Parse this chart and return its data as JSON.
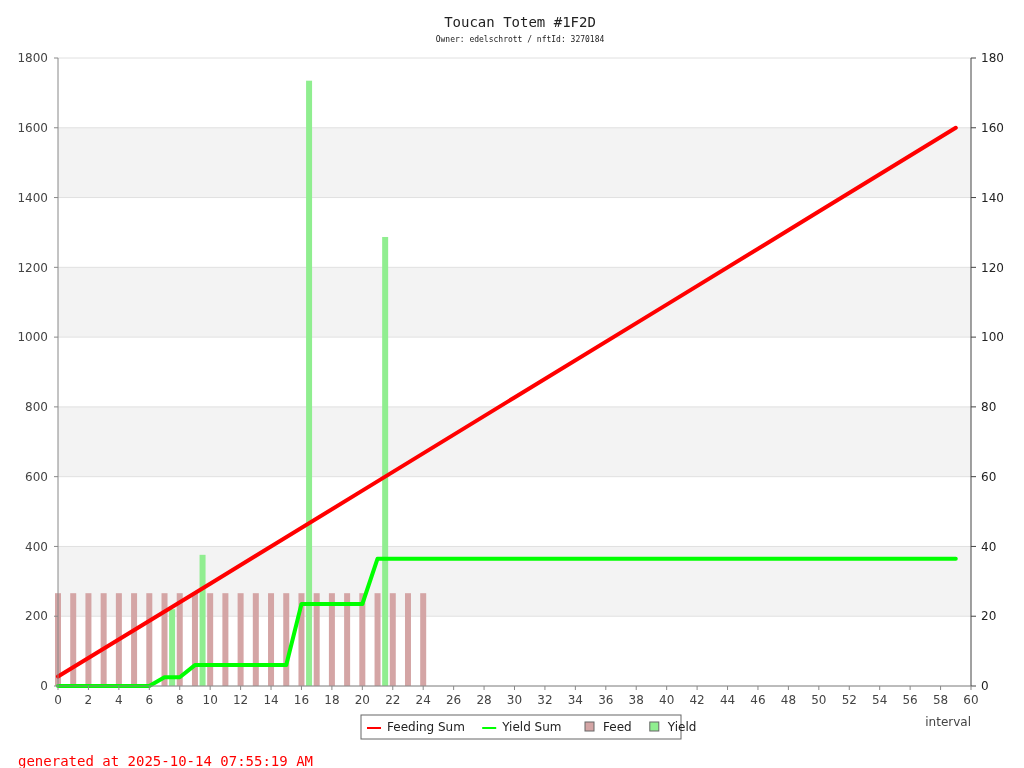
{
  "chart_data": {
    "type": "line",
    "title": "Toucan Totem #1F2D",
    "subtitle": "Owner: edelschrott / nftId: 3270184",
    "xlabel": "interval",
    "annotations": [
      "generated at 2025-10-14 07:55:19 AM"
    ],
    "xlim": [
      0,
      60
    ],
    "xticks": [
      0,
      2,
      4,
      6,
      8,
      10,
      12,
      14,
      16,
      18,
      20,
      22,
      24,
      26,
      28,
      30,
      32,
      34,
      36,
      38,
      40,
      42,
      44,
      46,
      48,
      50,
      52,
      54,
      56,
      58,
      60
    ],
    "ylim": [
      0,
      1800
    ],
    "yticks": [
      0,
      200,
      400,
      600,
      800,
      1000,
      1200,
      1400,
      1600,
      1800
    ],
    "y2lim": [
      0,
      180
    ],
    "y2ticks": [
      0,
      20,
      40,
      60,
      80,
      100,
      120,
      140,
      160,
      180
    ],
    "grid": "y",
    "legend": "bottom",
    "series": [
      {
        "name": "Feed",
        "type": "bar",
        "axis": "y2",
        "color": "#d4a5a5",
        "x": [
          0,
          1,
          2,
          3,
          4,
          5,
          6,
          7,
          8,
          9,
          10,
          11,
          12,
          13,
          14,
          15,
          16,
          17,
          18,
          19,
          20,
          21,
          22,
          23,
          24
        ],
        "values": [
          26.6,
          26.6,
          26.6,
          26.6,
          26.6,
          26.6,
          26.6,
          26.6,
          26.6,
          26.6,
          26.6,
          26.6,
          26.6,
          26.6,
          26.6,
          26.6,
          26.6,
          26.6,
          26.6,
          26.6,
          26.6,
          26.6,
          26.6,
          26.6,
          26.6
        ]
      },
      {
        "name": "Yield",
        "type": "bar",
        "axis": "y2",
        "color": "#90ee90",
        "x": [
          7.5,
          9.5,
          16.5,
          21.5
        ],
        "values": [
          22,
          37.6,
          173.5,
          128.7
        ]
      },
      {
        "name": "Feeding Sum",
        "color": "#ff0000",
        "x": [
          0,
          10,
          20,
          30,
          40,
          50,
          59
        ],
        "values": [
          27,
          293,
          560,
          827,
          1093,
          1360,
          1600
        ]
      },
      {
        "name": "Yield Sum",
        "color": "#00ff00",
        "x": [
          0,
          6,
          7,
          8,
          9,
          15,
          16,
          20,
          21,
          59
        ],
        "values": [
          0,
          0,
          25,
          25,
          60,
          60,
          235,
          235,
          365,
          365
        ]
      }
    ]
  }
}
